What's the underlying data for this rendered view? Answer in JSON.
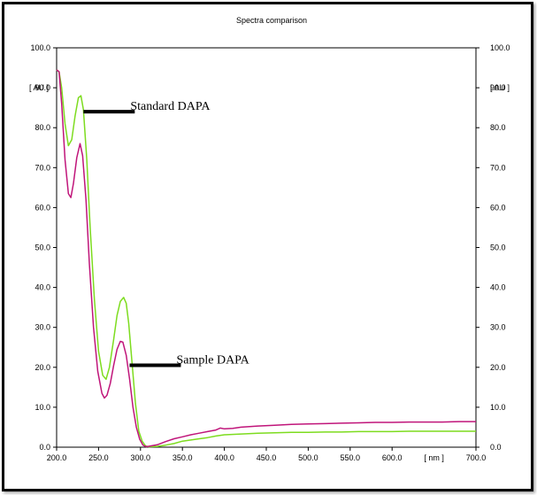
{
  "chart_data": {
    "type": "line",
    "title": "Spectra comparison",
    "x_unit_label": "[ nm ]",
    "y_unit_label": "[ AU ]",
    "xlim": [
      200,
      700
    ],
    "ylim": [
      0,
      100
    ],
    "x_ticks": [
      "200.0",
      "250.0",
      "300.0",
      "350.0",
      "400.0",
      "450.0",
      "500.0",
      "550.0",
      "600.0",
      "700.0"
    ],
    "y_ticks": [
      "0.0",
      "10.0",
      "20.0",
      "30.0",
      "40.0",
      "50.0",
      "60.0",
      "70.0",
      "80.0",
      "90.0",
      "100.0"
    ],
    "grid": false,
    "series": [
      {
        "name": "Standard DAPA",
        "color": "#7ddc1f",
        "points": [
          [
            200,
            94.5
          ],
          [
            203,
            94
          ],
          [
            206,
            90
          ],
          [
            210,
            81
          ],
          [
            214,
            75.5
          ],
          [
            218,
            77
          ],
          [
            222,
            83
          ],
          [
            226,
            87.5
          ],
          [
            229,
            88
          ],
          [
            232,
            84.5
          ],
          [
            236,
            72
          ],
          [
            240,
            55
          ],
          [
            245,
            37
          ],
          [
            250,
            24
          ],
          [
            255,
            18
          ],
          [
            259,
            17
          ],
          [
            263,
            20
          ],
          [
            268,
            27
          ],
          [
            272,
            33
          ],
          [
            276,
            36.5
          ],
          [
            280,
            37.5
          ],
          [
            283,
            36
          ],
          [
            286,
            31
          ],
          [
            290,
            21
          ],
          [
            294,
            11
          ],
          [
            298,
            4
          ],
          [
            302,
            1.5
          ],
          [
            306,
            0.3
          ],
          [
            310,
            0.1
          ],
          [
            320,
            0.2
          ],
          [
            330,
            0.5
          ],
          [
            340,
            0.9
          ],
          [
            350,
            1.5
          ],
          [
            360,
            1.8
          ],
          [
            370,
            2.1
          ],
          [
            380,
            2.4
          ],
          [
            390,
            2.8
          ],
          [
            400,
            3.1
          ],
          [
            420,
            3.3
          ],
          [
            440,
            3.5
          ],
          [
            460,
            3.6
          ],
          [
            480,
            3.7
          ],
          [
            500,
            3.7
          ],
          [
            520,
            3.8
          ],
          [
            540,
            3.8
          ],
          [
            560,
            3.9
          ],
          [
            580,
            3.9
          ],
          [
            600,
            3.9
          ],
          [
            620,
            4.0
          ],
          [
            640,
            4.0
          ],
          [
            660,
            4.0
          ],
          [
            680,
            4.0
          ],
          [
            700,
            4.0
          ]
        ]
      },
      {
        "name": "Sample DAPA",
        "color": "#c0157a",
        "points": [
          [
            200,
            94.5
          ],
          [
            203,
            94
          ],
          [
            206,
            86
          ],
          [
            210,
            72
          ],
          [
            214,
            63.5
          ],
          [
            217,
            62.5
          ],
          [
            220,
            66
          ],
          [
            224,
            72.5
          ],
          [
            228,
            76
          ],
          [
            231,
            73
          ],
          [
            235,
            62
          ],
          [
            239,
            46
          ],
          [
            244,
            30
          ],
          [
            249,
            19
          ],
          [
            254,
            13.5
          ],
          [
            257,
            12.3
          ],
          [
            260,
            13
          ],
          [
            264,
            16
          ],
          [
            268,
            20.5
          ],
          [
            272,
            24.5
          ],
          [
            276,
            26.5
          ],
          [
            279,
            26.3
          ],
          [
            283,
            23
          ],
          [
            287,
            17
          ],
          [
            291,
            10
          ],
          [
            295,
            5
          ],
          [
            299,
            2
          ],
          [
            303,
            0.5
          ],
          [
            307,
            0.1
          ],
          [
            312,
            0.3
          ],
          [
            320,
            0.6
          ],
          [
            330,
            1.4
          ],
          [
            340,
            2.1
          ],
          [
            350,
            2.6
          ],
          [
            360,
            3.1
          ],
          [
            370,
            3.5
          ],
          [
            380,
            3.9
          ],
          [
            390,
            4.3
          ],
          [
            395,
            4.8
          ],
          [
            400,
            4.6
          ],
          [
            410,
            4.7
          ],
          [
            420,
            5.0
          ],
          [
            440,
            5.3
          ],
          [
            460,
            5.5
          ],
          [
            480,
            5.7
          ],
          [
            500,
            5.8
          ],
          [
            520,
            5.9
          ],
          [
            540,
            6.0
          ],
          [
            560,
            6.1
          ],
          [
            580,
            6.2
          ],
          [
            600,
            6.2
          ],
          [
            620,
            6.3
          ],
          [
            640,
            6.3
          ],
          [
            660,
            6.3
          ],
          [
            680,
            6.4
          ],
          [
            700,
            6.4
          ]
        ]
      }
    ],
    "annotations": [
      {
        "text": "Standard DAPA",
        "series": "Standard DAPA",
        "x": 232,
        "y": 84
      },
      {
        "text": "Sample DAPA",
        "series": "Sample DAPA",
        "x": 287,
        "y": 20.5
      }
    ]
  }
}
